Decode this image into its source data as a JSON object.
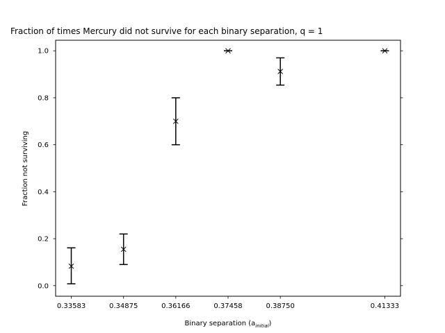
{
  "chart_data": {
    "type": "scatter",
    "title": "Fraction of times Mercury did not survive for each binary separation, q = 1",
    "xlabel": "Binary separation (a",
    "xlabel_sub": "initial",
    "xlabel_end": ")",
    "ylabel": "Fraction not surviving",
    "x": [
      0.33583,
      0.34875,
      0.36166,
      0.37458,
      0.3875,
      0.41333
    ],
    "y": [
      0.083,
      0.155,
      0.7,
      1.0,
      0.912,
      1.0
    ],
    "yerr_low": [
      0.075,
      0.065,
      0.1,
      0.0,
      0.058,
      0.0
    ],
    "yerr_high": [
      0.078,
      0.065,
      0.1,
      0.0,
      0.058,
      0.0
    ],
    "xticks": [
      "0.33583",
      "0.34875",
      "0.36166",
      "0.37458",
      "0.38750",
      "0.41333"
    ],
    "yticks": [
      "0.0",
      "0.2",
      "0.4",
      "0.6",
      "0.8",
      "1.0"
    ],
    "xlim": [
      0.33196,
      0.4172
    ],
    "ylim": [
      -0.045,
      1.045
    ],
    "marker": "x",
    "color": "#000000",
    "grid": false
  }
}
